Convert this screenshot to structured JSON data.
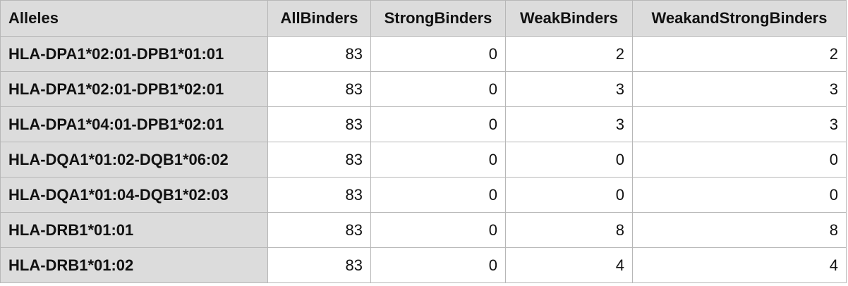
{
  "table": {
    "headers": [
      "Alleles",
      "AllBinders",
      "StrongBinders",
      "WeakBinders",
      "WeakandStrongBinders"
    ],
    "rows": [
      {
        "allele": "HLA-DPA1*02:01-DPB1*01:01",
        "all_binders": "83",
        "strong_binders": "0",
        "weak_binders": "2",
        "weak_and_strong_binders": "2"
      },
      {
        "allele": "HLA-DPA1*02:01-DPB1*02:01",
        "all_binders": "83",
        "strong_binders": "0",
        "weak_binders": "3",
        "weak_and_strong_binders": "3"
      },
      {
        "allele": "HLA-DPA1*04:01-DPB1*02:01",
        "all_binders": "83",
        "strong_binders": "0",
        "weak_binders": "3",
        "weak_and_strong_binders": "3"
      },
      {
        "allele": "HLA-DQA1*01:02-DQB1*06:02",
        "all_binders": "83",
        "strong_binders": "0",
        "weak_binders": "0",
        "weak_and_strong_binders": "0"
      },
      {
        "allele": "HLA-DQA1*01:04-DQB1*02:03",
        "all_binders": "83",
        "strong_binders": "0",
        "weak_binders": "0",
        "weak_and_strong_binders": "0"
      },
      {
        "allele": "HLA-DRB1*01:01",
        "all_binders": "83",
        "strong_binders": "0",
        "weak_binders": "8",
        "weak_and_strong_binders": "8"
      },
      {
        "allele": "HLA-DRB1*01:02",
        "all_binders": "83",
        "strong_binders": "0",
        "weak_binders": "4",
        "weak_and_strong_binders": "4"
      }
    ]
  }
}
